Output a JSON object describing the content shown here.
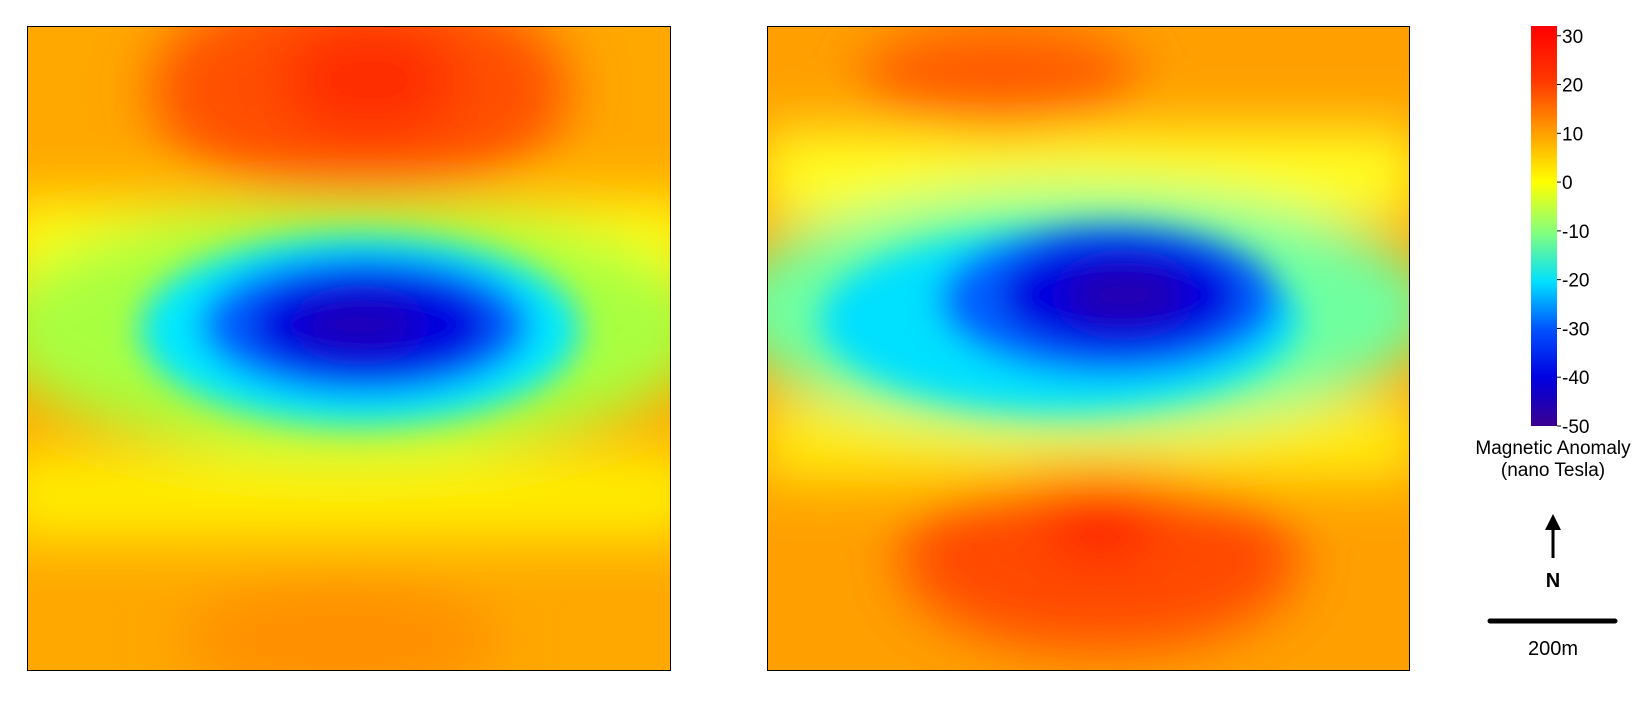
{
  "colorbar": {
    "range": [
      -50,
      32
    ],
    "ticks": [
      30,
      20,
      10,
      0,
      -10,
      -20,
      -30,
      -40,
      -50
    ],
    "label": [
      "Magnetic Anomaly",
      "(nano Tesla)"
    ]
  },
  "north_label": "N",
  "scale_label": "200m"
}
